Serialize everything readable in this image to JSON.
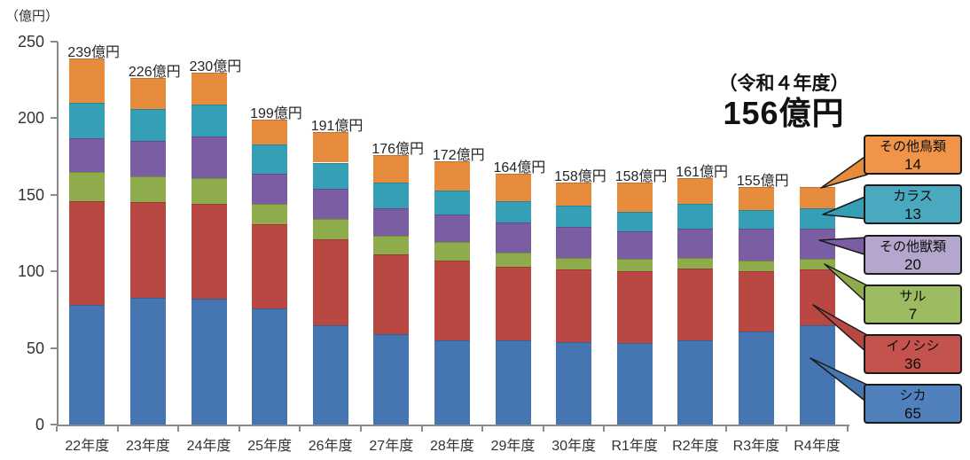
{
  "axis_unit_label": "（億円）",
  "annotation": {
    "line1": "（令和４年度）",
    "line2": "156億円"
  },
  "colors": {
    "axis": "#8a8a8a",
    "text": "#333333",
    "callout_border": "#1a1a1a"
  },
  "chart_data": {
    "type": "bar",
    "stacked": true,
    "title": "",
    "ylabel": "（億円）",
    "xlabel": "",
    "ylim": [
      0,
      250
    ],
    "y_ticks": [
      0,
      50,
      100,
      150,
      200,
      250
    ],
    "grid": false,
    "legend_position": "right-callouts",
    "categories": [
      "22年度",
      "23年度",
      "24年度",
      "25年度",
      "26年度",
      "27年度",
      "28年度",
      "29年度",
      "30年度",
      "R1年度",
      "R2年度",
      "R3年度",
      "R4年度"
    ],
    "totals": [
      239,
      226,
      230,
      199,
      191,
      176,
      172,
      164,
      158,
      158,
      161,
      155,
      156
    ],
    "total_labels": [
      "239億円",
      "226億円",
      "230億円",
      "199億円",
      "191億円",
      "176億円",
      "172億円",
      "164億円",
      "158億円",
      "158億円",
      "161億円",
      "155億円",
      null
    ],
    "series": [
      {
        "name": "シカ",
        "color": "#4576B2",
        "legend_fill": "#5081BD",
        "legend_value": "65",
        "values": [
          78,
          83,
          82,
          76,
          65,
          59,
          55,
          55,
          54,
          53,
          55,
          61,
          65
        ]
      },
      {
        "name": "イノシシ",
        "color": "#B94843",
        "legend_fill": "#C4534E",
        "legend_value": "36",
        "values": [
          68,
          62,
          62,
          55,
          56,
          52,
          52,
          48,
          47,
          47,
          47,
          39,
          36
        ]
      },
      {
        "name": "サル",
        "color": "#8EAC4B",
        "legend_fill": "#9DBB61",
        "legend_value": "7",
        "values": [
          19,
          17,
          17,
          13,
          13,
          12,
          12,
          9,
          8,
          8,
          7,
          7,
          7
        ]
      },
      {
        "name": "その他獣類",
        "color": "#7A5DA3",
        "legend_fill": "#B4A6CD",
        "legend_value": "20",
        "values": [
          22,
          23,
          27,
          20,
          20,
          18,
          18,
          20,
          20,
          18,
          19,
          21,
          20
        ]
      },
      {
        "name": "カラス",
        "color": "#35A0B5",
        "legend_fill": "#4AA9BE",
        "legend_value": "13",
        "values": [
          23,
          21,
          21,
          19,
          17,
          17,
          16,
          14,
          14,
          13,
          16,
          12,
          13
        ]
      },
      {
        "name": "その他鳥類",
        "color": "#E78C3C",
        "legend_fill": "#F0944A",
        "legend_value": "14",
        "values": [
          29,
          20,
          21,
          16,
          20,
          18,
          19,
          18,
          15,
          19,
          17,
          15,
          14
        ]
      }
    ],
    "legend_order_top_to_bottom": [
      "その他鳥類",
      "カラス",
      "その他獣類",
      "サル",
      "イノシシ",
      "シカ"
    ]
  }
}
